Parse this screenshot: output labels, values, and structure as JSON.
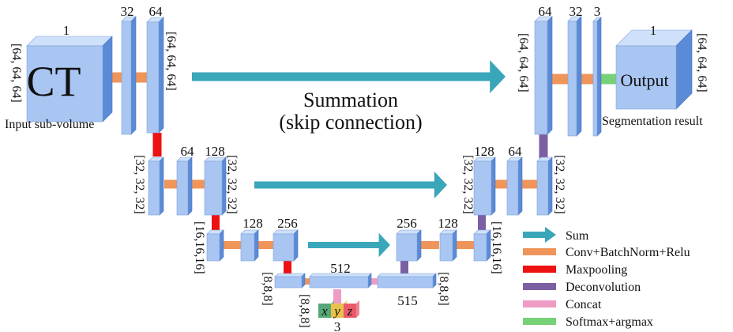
{
  "colors": {
    "block_front": "#a9c6f2",
    "block_top": "#cfe0fa",
    "block_side": "#5b8ad6",
    "sum": "#3aa6b9",
    "conv": "#f0955a",
    "pool": "#ee1111",
    "deconv": "#7b5fa3",
    "concat": "#ee9cc4",
    "softmax": "#77d177",
    "x_tile": "#55a878",
    "y_tile": "#e8c24a",
    "z_tile": "#ea5a6a"
  },
  "input": {
    "channels": "1",
    "text": "CT",
    "dims": "[64, 64, 64]",
    "caption": "Input sub-volume"
  },
  "output": {
    "channels": "1",
    "text": "Output",
    "dims": "[64, 64, 64]",
    "caption": "Segmentation result"
  },
  "level1": {
    "enc_ch_a": "32",
    "enc_ch_b": "64",
    "enc_dims": "[64, 64, 64]",
    "dec_ch_a": "64",
    "dec_ch_b": "32",
    "dec_ch_c": "3",
    "dec_dims": "[64, 64, 64]"
  },
  "skip": {
    "line1": "Summation",
    "line2": "(skip connection)"
  },
  "level2": {
    "enc_ch_a": "64",
    "enc_ch_b": "128",
    "enc_dims_left": "[32, 32, 32]",
    "enc_dims_right": "[32, 32, 32]",
    "dec_ch_a": "128",
    "dec_ch_b": "64",
    "dec_dims_left": "[32, 32, 32]",
    "dec_dims_right": "[32, 32, 32]"
  },
  "level3": {
    "enc_ch_a": "128",
    "enc_ch_b": "256",
    "enc_dims": "[16,16,16]",
    "dec_ch_a": "256",
    "dec_ch_b": "128",
    "dec_dims": "[16,16,16]"
  },
  "bottom": {
    "left_dims": "[8,8,8]",
    "ch_mid": "512",
    "ch_right": "515",
    "right_dims": "[8,8,8]",
    "coord_dims": "[8,8,8]",
    "coord_x": "x",
    "coord_y": "y",
    "coord_z": "z",
    "coord_ch": "3"
  },
  "legend": [
    {
      "label": "Sum",
      "color_key": "sum"
    },
    {
      "label": "Conv+BatchNorm+Relu",
      "color_key": "conv"
    },
    {
      "label": "Maxpooling",
      "color_key": "pool"
    },
    {
      "label": "Deconvolution",
      "color_key": "deconv"
    },
    {
      "label": "Concat",
      "color_key": "concat"
    },
    {
      "label": "Softmax+argmax",
      "color_key": "softmax"
    }
  ]
}
